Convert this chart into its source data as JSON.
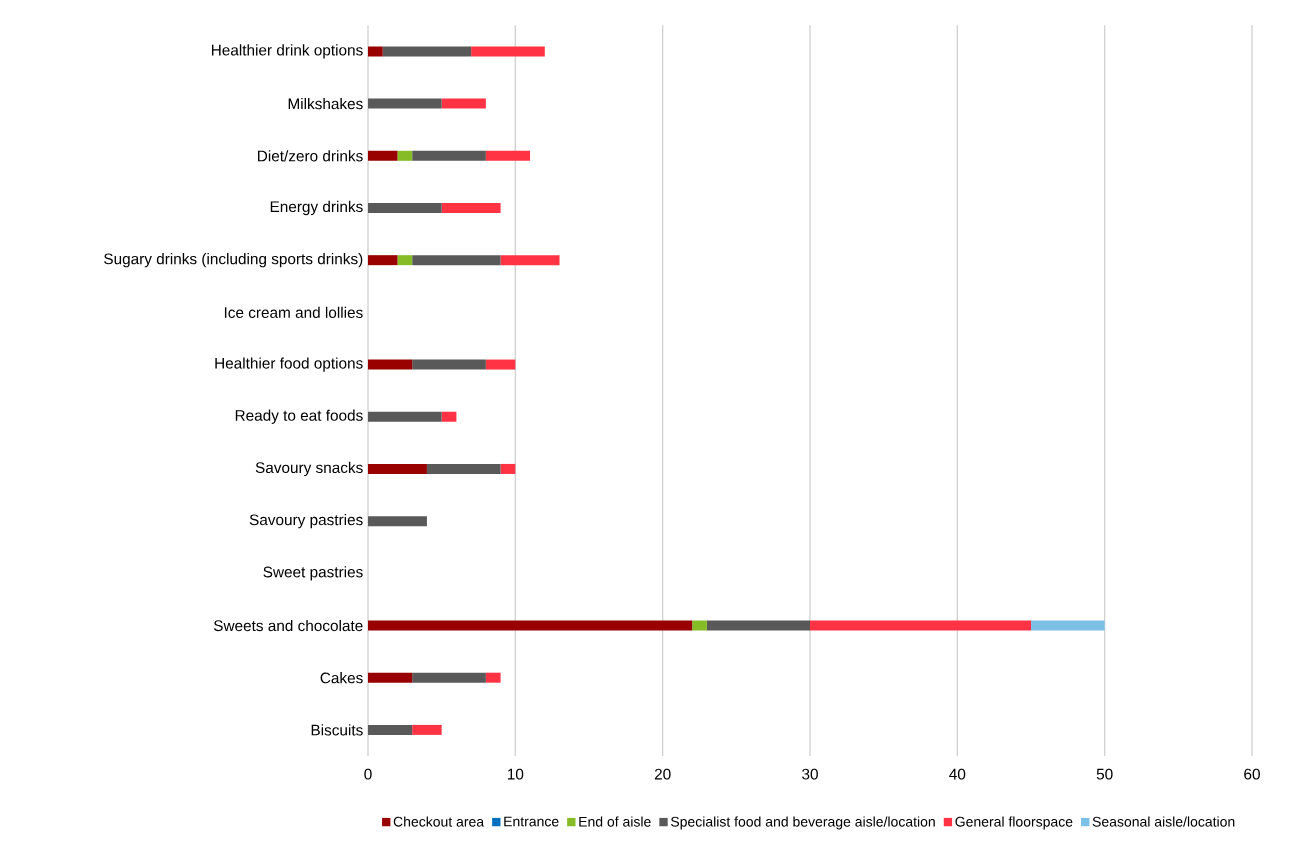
{
  "chart_data": {
    "type": "bar",
    "orientation": "horizontal",
    "stacked": true,
    "categories": [
      "Healthier drink options",
      "Milkshakes",
      "Diet/zero drinks",
      "Energy drinks",
      "Sugary drinks (including sports drinks)",
      "Ice cream and lollies",
      "Healthier food options",
      "Ready to eat foods",
      "Savoury snacks",
      "Savoury pastries",
      "Sweet pastries",
      "Sweets and chocolate",
      "Cakes",
      "Biscuits"
    ],
    "series": [
      {
        "name": "Checkout area",
        "color": "#990000",
        "values": [
          1,
          0,
          2,
          0,
          2,
          0,
          3,
          0,
          4,
          0,
          0,
          22,
          3,
          0
        ]
      },
      {
        "name": "Entrance",
        "color": "#0070c0",
        "values": [
          0,
          0,
          0,
          0,
          0,
          0,
          0,
          0,
          0,
          0,
          0,
          0,
          0,
          0
        ]
      },
      {
        "name": "End of aisle",
        "color": "#86bc25",
        "values": [
          0,
          0,
          1,
          0,
          1,
          0,
          0,
          0,
          0,
          0,
          0,
          1,
          0,
          0
        ]
      },
      {
        "name": "Specialist food and beverage aisle/location",
        "color": "#595959",
        "values": [
          6,
          5,
          5,
          5,
          6,
          0,
          5,
          5,
          5,
          4,
          0,
          7,
          5,
          3
        ]
      },
      {
        "name": "General floorspace",
        "color": "#ff3344",
        "values": [
          5,
          3,
          3,
          4,
          4,
          0,
          2,
          1,
          1,
          0,
          0,
          15,
          1,
          2
        ]
      },
      {
        "name": "Seasonal aisle/location",
        "color": "#7cc0e8",
        "values": [
          0,
          0,
          0,
          0,
          0,
          0,
          0,
          0,
          0,
          0,
          0,
          5,
          0,
          0
        ]
      }
    ],
    "xlim": [
      0,
      60
    ],
    "xticks": [
      0,
      10,
      20,
      30,
      40,
      50,
      60
    ],
    "grid": "x",
    "legend": "bottom"
  }
}
